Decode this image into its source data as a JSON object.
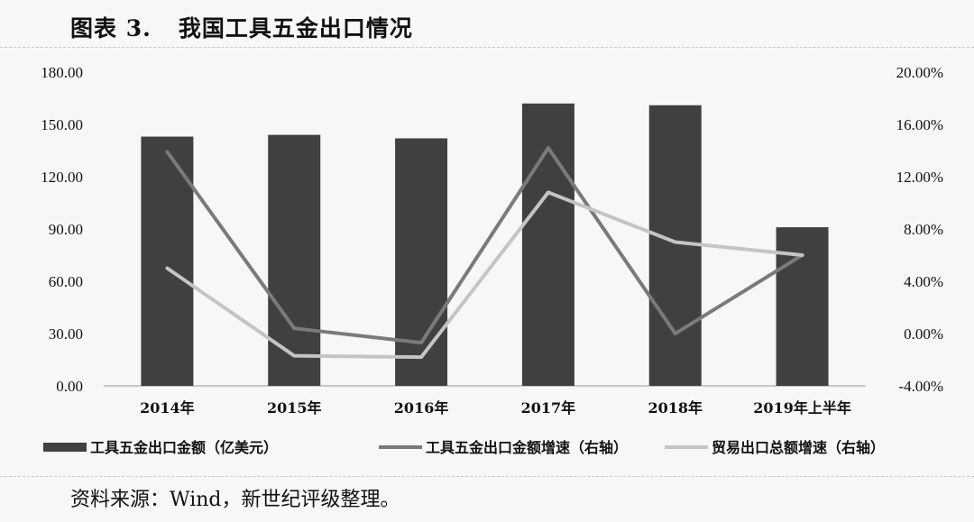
{
  "figure": {
    "number": "图表 3.",
    "title": "我国工具五金出口情况",
    "source": "资料来源：Wind，新世纪评级整理。"
  },
  "colors": {
    "bar": "#404040",
    "growth_line": "#7a7a7a",
    "trade_line": "#c4c4c4"
  },
  "chart_data": {
    "type": "bar",
    "categories": [
      "2014年",
      "2015年",
      "2016年",
      "2017年",
      "2018年",
      "2019年上半年"
    ],
    "series": [
      {
        "name": "工具五金出口金额（亿美元）",
        "type": "bar",
        "axis": "left",
        "values": [
          143,
          144,
          142,
          162,
          161,
          91
        ]
      },
      {
        "name": "工具五金出口金额增速（右轴）",
        "type": "line",
        "axis": "right",
        "values": [
          13.9,
          0.4,
          -0.7,
          14.2,
          0.0,
          6.0
        ]
      },
      {
        "name": "贸易出口总额增速（右轴）",
        "type": "line",
        "axis": "right",
        "values": [
          5.0,
          -1.7,
          -1.8,
          10.8,
          7.0,
          6.0
        ]
      }
    ],
    "ylim_left": [
      0,
      180
    ],
    "ylim_right": [
      -4,
      20
    ],
    "left_ticks": [
      "0.00",
      "30.00",
      "60.00",
      "90.00",
      "120.00",
      "150.00",
      "180.00"
    ],
    "right_ticks": [
      "-4.00%",
      "0.00%",
      "4.00%",
      "8.00%",
      "12.00%",
      "16.00%",
      "20.00%"
    ],
    "grid": false,
    "legend_position": "bottom"
  }
}
